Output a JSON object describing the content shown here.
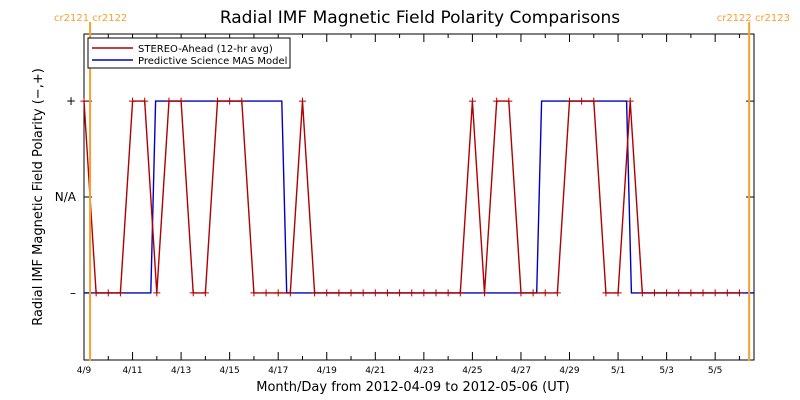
{
  "chart_data": {
    "type": "line",
    "title": "Radial IMF Magnetic Field Polarity Comparisons",
    "xlabel": "Month/Day from 2012-04-09 to 2012-05-06 (UT)",
    "ylabel": "Radial IMF Magnetic Field Polarity (−,+)",
    "xlim": [
      0,
      27.6
    ],
    "ylim": [
      -1.7,
      1.7
    ],
    "x_ticks": [
      {
        "x": 0,
        "label": "4/9"
      },
      {
        "x": 2,
        "label": "4/11"
      },
      {
        "x": 4,
        "label": "4/13"
      },
      {
        "x": 6,
        "label": "4/15"
      },
      {
        "x": 8,
        "label": "4/17"
      },
      {
        "x": 10,
        "label": "4/19"
      },
      {
        "x": 12,
        "label": "4/21"
      },
      {
        "x": 14,
        "label": "4/23"
      },
      {
        "x": 16,
        "label": "4/25"
      },
      {
        "x": 18,
        "label": "4/27"
      },
      {
        "x": 20,
        "label": "4/29"
      },
      {
        "x": 22,
        "label": "5/1"
      },
      {
        "x": 24,
        "label": "5/3"
      },
      {
        "x": 26,
        "label": "5/5"
      }
    ],
    "y_ticks": [
      {
        "y": 1,
        "label": "+"
      },
      {
        "y": 0,
        "label": "N/A"
      },
      {
        "y": -1,
        "label": "–"
      }
    ],
    "carrington_markers": [
      {
        "x": 0.25,
        "label": "cr2121 cr2122"
      },
      {
        "x": 27.4,
        "label": "cr2122 cr2123"
      }
    ],
    "marker_color": "#f7a030",
    "legend": {
      "position": "top-left",
      "entries": [
        "STEREO-Ahead (12-hr avg)",
        "Predictive Science MAS Model"
      ]
    },
    "series": [
      {
        "name": "STEREO-Ahead (12-hr avg)",
        "color": "#b00000",
        "marker": "+",
        "x": [
          0.0,
          0.5,
          1.0,
          1.5,
          2.0,
          2.5,
          3.0,
          3.5,
          4.0,
          4.5,
          5.0,
          5.5,
          6.0,
          6.5,
          7.0,
          7.5,
          8.0,
          8.5,
          9.0,
          9.5,
          10.0,
          10.5,
          11.0,
          11.5,
          12.0,
          12.5,
          13.0,
          13.5,
          14.0,
          14.5,
          15.0,
          15.5,
          16.0,
          16.5,
          17.0,
          17.5,
          18.0,
          18.5,
          19.0,
          19.5,
          20.0,
          20.5,
          21.0,
          21.5,
          22.0,
          22.5,
          23.0,
          23.5,
          24.0,
          24.5,
          25.0,
          25.5,
          26.0,
          26.5,
          27.0
        ],
        "y": [
          1,
          -1,
          -1,
          -1,
          1,
          1,
          -1,
          1,
          1,
          -1,
          -1,
          1,
          1,
          1,
          -1,
          -1,
          -1,
          -1,
          1,
          -1,
          -1,
          -1,
          -1,
          -1,
          -1,
          -1,
          -1,
          -1,
          -1,
          -1,
          -1,
          -1,
          1,
          -1,
          1,
          1,
          -1,
          -1,
          -1,
          -1,
          1,
          1,
          1,
          -1,
          -1,
          1,
          -1,
          -1,
          -1,
          -1,
          -1,
          -1,
          -1,
          -1,
          -1
        ]
      },
      {
        "name": "Predictive Science MAS Model",
        "color": "#0000c0",
        "x": [
          0.0,
          2.75,
          2.95,
          8.15,
          8.35,
          18.65,
          18.85,
          22.35,
          22.55,
          27.6
        ],
        "y": [
          -1,
          -1,
          1,
          1,
          -1,
          -1,
          1,
          1,
          -1,
          -1
        ]
      }
    ]
  }
}
